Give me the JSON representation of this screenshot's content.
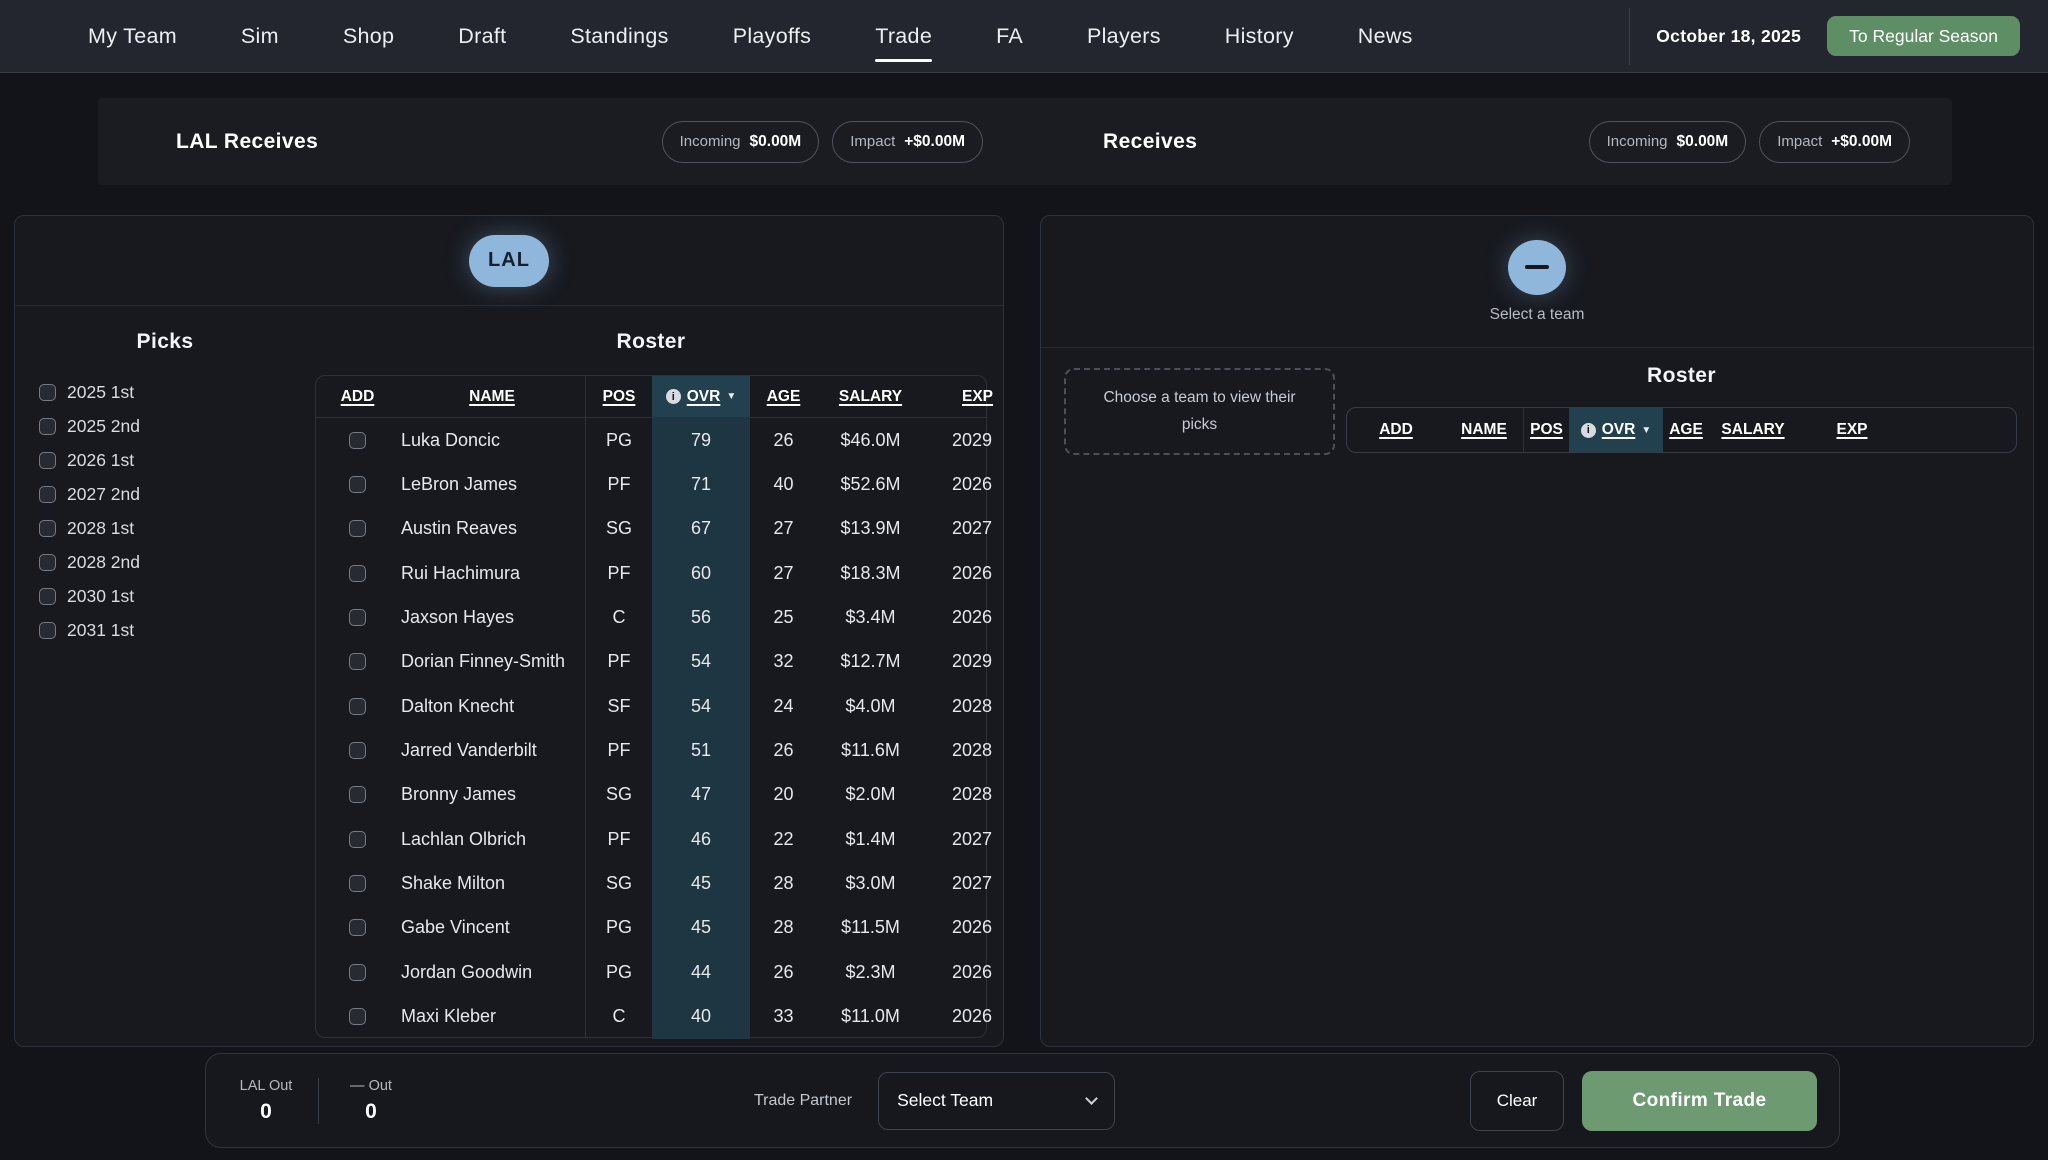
{
  "nav": {
    "items": [
      "My Team",
      "Sim",
      "Shop",
      "Draft",
      "Standings",
      "Playoffs",
      "Trade",
      "FA",
      "Players",
      "History",
      "News"
    ],
    "active": "Trade",
    "date": "October 18, 2025",
    "season_button": "To Regular Season"
  },
  "summary": {
    "left": {
      "title": "LAL Receives",
      "incoming_label": "Incoming",
      "incoming_value": "$0.00M",
      "impact_label": "Impact",
      "impact_value": "+$0.00M"
    },
    "right": {
      "title": "Receives",
      "incoming_label": "Incoming",
      "incoming_value": "$0.00M",
      "impact_label": "Impact",
      "impact_value": "+$0.00M"
    }
  },
  "left_panel": {
    "team_badge": "LAL",
    "picks_title": "Picks",
    "picks": [
      "2025 1st",
      "2025 2nd",
      "2026 1st",
      "2027 2nd",
      "2028 1st",
      "2028 2nd",
      "2030 1st",
      "2031 1st"
    ],
    "roster_title": "Roster",
    "table": {
      "headers": [
        "ADD",
        "NAME",
        "POS",
        "OVR",
        "AGE",
        "SALARY",
        "EXP"
      ],
      "rows": [
        {
          "name": "Luka Doncic",
          "pos": "PG",
          "ovr": 79,
          "age": 26,
          "salary": "$46.0M",
          "exp": "2029"
        },
        {
          "name": "LeBron James",
          "pos": "PF",
          "ovr": 71,
          "age": 40,
          "salary": "$52.6M",
          "exp": "2026"
        },
        {
          "name": "Austin Reaves",
          "pos": "SG",
          "ovr": 67,
          "age": 27,
          "salary": "$13.9M",
          "exp": "2027"
        },
        {
          "name": "Rui Hachimura",
          "pos": "PF",
          "ovr": 60,
          "age": 27,
          "salary": "$18.3M",
          "exp": "2026"
        },
        {
          "name": "Jaxson Hayes",
          "pos": "C",
          "ovr": 56,
          "age": 25,
          "salary": "$3.4M",
          "exp": "2026"
        },
        {
          "name": "Dorian Finney-Smith",
          "pos": "PF",
          "ovr": 54,
          "age": 32,
          "salary": "$12.7M",
          "exp": "2029"
        },
        {
          "name": "Dalton Knecht",
          "pos": "SF",
          "ovr": 54,
          "age": 24,
          "salary": "$4.0M",
          "exp": "2028"
        },
        {
          "name": "Jarred Vanderbilt",
          "pos": "PF",
          "ovr": 51,
          "age": 26,
          "salary": "$11.6M",
          "exp": "2028"
        },
        {
          "name": "Bronny James",
          "pos": "SG",
          "ovr": 47,
          "age": 20,
          "salary": "$2.0M",
          "exp": "2028"
        },
        {
          "name": "Lachlan Olbrich",
          "pos": "PF",
          "ovr": 46,
          "age": 22,
          "salary": "$1.4M",
          "exp": "2027"
        },
        {
          "name": "Shake Milton",
          "pos": "SG",
          "ovr": 45,
          "age": 28,
          "salary": "$3.0M",
          "exp": "2027"
        },
        {
          "name": "Gabe Vincent",
          "pos": "PG",
          "ovr": 45,
          "age": 28,
          "salary": "$11.5M",
          "exp": "2026"
        },
        {
          "name": "Jordan Goodwin",
          "pos": "PG",
          "ovr": 44,
          "age": 26,
          "salary": "$2.3M",
          "exp": "2026"
        },
        {
          "name": "Maxi Kleber",
          "pos": "C",
          "ovr": 40,
          "age": 33,
          "salary": "$11.0M",
          "exp": "2026"
        }
      ]
    }
  },
  "right_panel": {
    "select_team_label": "Select a team",
    "picks_placeholder": "Choose a team to view their picks",
    "roster_title": "Roster",
    "table_headers": [
      "ADD",
      "NAME",
      "POS",
      "OVR",
      "AGE",
      "SALARY",
      "EXP"
    ]
  },
  "footer": {
    "lal_out_label": "LAL Out",
    "lal_out_value": "0",
    "other_out_label": "— Out",
    "other_out_value": "0",
    "trade_partner_label": "Trade Partner",
    "select_team_value": "Select Team",
    "clear_label": "Clear",
    "confirm_label": "Confirm Trade"
  },
  "icons": {
    "ovr_info": "i",
    "sort_desc": "▼"
  },
  "colors": {
    "team_badge_blue": "#8fb7dc",
    "season_button_green": "#5d8e64",
    "confirm_button_green": "#6d9a71",
    "ovr_column_highlight": "#1d3641",
    "nav_background": "#23262e",
    "panel_background": "#17191f",
    "page_background": "#121419"
  }
}
